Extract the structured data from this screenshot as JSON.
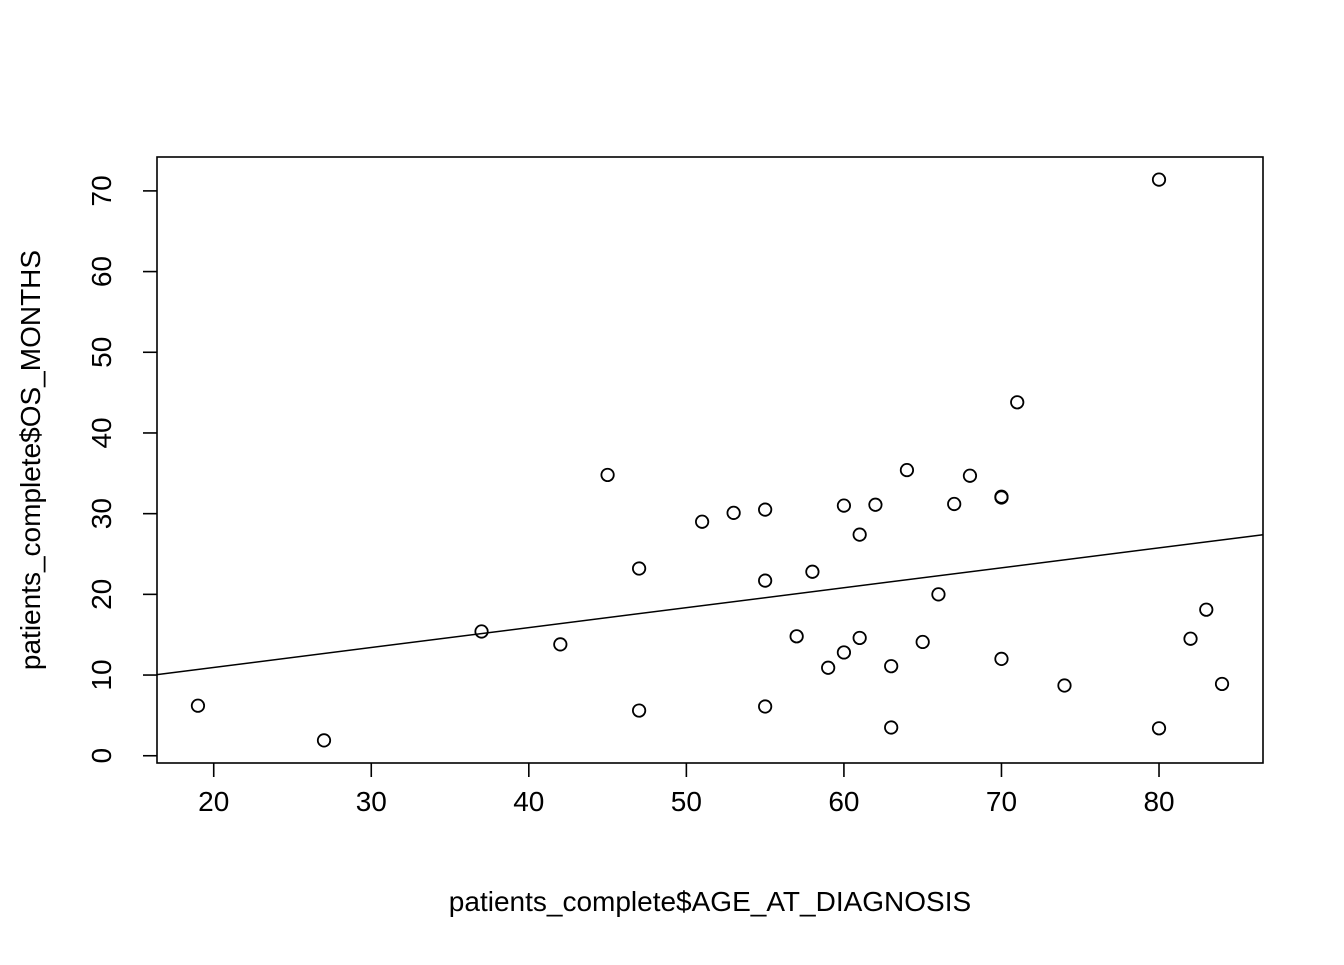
{
  "chart_data": {
    "type": "scatter",
    "title": "",
    "xlabel": "patients_complete$AGE_AT_DIAGNOSIS",
    "ylabel": "patients_complete$OS_MONTHS",
    "xlim": [
      16.4,
      86.6
    ],
    "ylim": [
      -0.9,
      74.2
    ],
    "xticks": [
      20,
      30,
      40,
      50,
      60,
      70,
      80
    ],
    "yticks": [
      0,
      10,
      20,
      30,
      40,
      50,
      60,
      70
    ],
    "grid": false,
    "legend": "none",
    "points": [
      {
        "x": 19,
        "y": 6.2
      },
      {
        "x": 27,
        "y": 1.9
      },
      {
        "x": 37,
        "y": 15.4
      },
      {
        "x": 42,
        "y": 13.8
      },
      {
        "x": 45,
        "y": 34.8
      },
      {
        "x": 47,
        "y": 23.2
      },
      {
        "x": 47,
        "y": 5.6
      },
      {
        "x": 51,
        "y": 29.0
      },
      {
        "x": 53,
        "y": 30.1
      },
      {
        "x": 55,
        "y": 30.5
      },
      {
        "x": 55,
        "y": 21.7
      },
      {
        "x": 55,
        "y": 6.1
      },
      {
        "x": 57,
        "y": 14.8
      },
      {
        "x": 58,
        "y": 22.8
      },
      {
        "x": 59,
        "y": 10.9
      },
      {
        "x": 60,
        "y": 31.0
      },
      {
        "x": 60,
        "y": 12.8
      },
      {
        "x": 61,
        "y": 27.4
      },
      {
        "x": 61,
        "y": 14.6
      },
      {
        "x": 62,
        "y": 31.1
      },
      {
        "x": 63,
        "y": 11.1
      },
      {
        "x": 63,
        "y": 3.5
      },
      {
        "x": 64,
        "y": 35.4
      },
      {
        "x": 65,
        "y": 14.1
      },
      {
        "x": 66,
        "y": 20.0
      },
      {
        "x": 67,
        "y": 31.2
      },
      {
        "x": 68,
        "y": 34.7
      },
      {
        "x": 70,
        "y": 32.0
      },
      {
        "x": 70,
        "y": 32.1
      },
      {
        "x": 70,
        "y": 12.0
      },
      {
        "x": 71,
        "y": 43.8
      },
      {
        "x": 74,
        "y": 8.7
      },
      {
        "x": 80,
        "y": 71.4
      },
      {
        "x": 80,
        "y": 3.4
      },
      {
        "x": 82,
        "y": 14.5
      },
      {
        "x": 83,
        "y": 18.1
      },
      {
        "x": 84,
        "y": 8.9
      }
    ],
    "regression_line": {
      "intercept": 6.0,
      "slope": 0.247
    }
  }
}
